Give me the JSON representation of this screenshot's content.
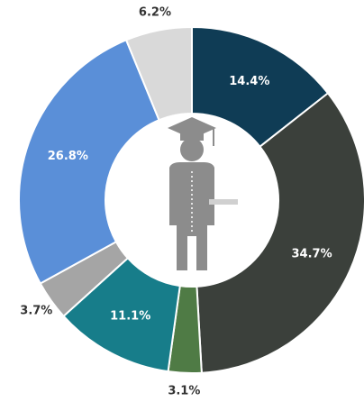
{
  "chart_data": {
    "type": "donut",
    "values": [
      14.4,
      34.7,
      3.1,
      11.1,
      3.7,
      26.8,
      6.2
    ],
    "value_labels": [
      "14.4%",
      "34.7%",
      "3.1%",
      "11.1%",
      "3.7%",
      "26.8%",
      "6.2%"
    ],
    "colors": [
      "#0f3c55",
      "#3b403b",
      "#4f7b45",
      "#177d8a",
      "#a5a5a5",
      "#5a8fd8",
      "#d9d9d9"
    ]
  }
}
